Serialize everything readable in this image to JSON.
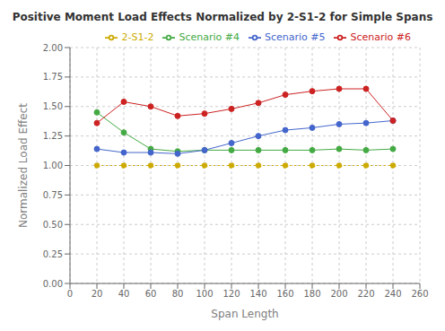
{
  "chart_data": {
    "type": "line",
    "title": "Positive Moment Load Effects Normalized by 2-S1-2 for Simple Spans",
    "xlabel": "Span Length",
    "ylabel": "Normalized Load Effect",
    "x": [
      20,
      40,
      60,
      80,
      100,
      120,
      140,
      160,
      180,
      200,
      220,
      240
    ],
    "xlim": [
      0,
      260
    ],
    "xticks": [
      0,
      20,
      40,
      60,
      80,
      100,
      120,
      140,
      160,
      180,
      200,
      220,
      240,
      260
    ],
    "ylim": [
      0.0,
      2.0
    ],
    "yticks": [
      {
        "value": 0.0,
        "label": "0.00"
      },
      {
        "value": 0.25,
        "label": "0.25"
      },
      {
        "value": 0.5,
        "label": "0.50"
      },
      {
        "value": 0.75,
        "label": "0.75"
      },
      {
        "value": 1.0,
        "label": "1.00"
      },
      {
        "value": 1.25,
        "label": "1.25"
      },
      {
        "value": 1.5,
        "label": "1.50"
      },
      {
        "value": 1.75,
        "label": "1.75"
      },
      {
        "value": 2.0,
        "label": "2.00"
      }
    ],
    "grid": true,
    "legend": "upper right",
    "series": [
      {
        "name": "2-S1-2",
        "color": "#ccaa00",
        "marker": "circle",
        "line_style": "dotted",
        "values": [
          1.0,
          1.0,
          1.0,
          1.0,
          1.0,
          1.0,
          1.0,
          1.0,
          1.0,
          1.0,
          1.0,
          1.0
        ]
      },
      {
        "name": "Scenario #4",
        "color": "#44aa44",
        "marker": "circle",
        "line_style": "solid",
        "values": [
          1.45,
          1.28,
          1.14,
          1.12,
          1.13,
          1.13,
          1.13,
          1.13,
          1.13,
          1.14,
          1.13,
          1.14
        ]
      },
      {
        "name": "Scenario #5",
        "color": "#4466cc",
        "marker": "circle",
        "line_style": "solid",
        "values": [
          1.14,
          1.11,
          1.11,
          1.1,
          1.13,
          1.19,
          1.25,
          1.3,
          1.32,
          1.35,
          1.36,
          1.38
        ]
      },
      {
        "name": "Scenario #6",
        "color": "#cc2222",
        "marker": "circle",
        "line_style": "solid",
        "values": [
          1.36,
          1.54,
          1.5,
          1.42,
          1.44,
          1.48,
          1.53,
          1.6,
          1.63,
          1.65,
          1.65,
          1.38
        ]
      }
    ]
  }
}
